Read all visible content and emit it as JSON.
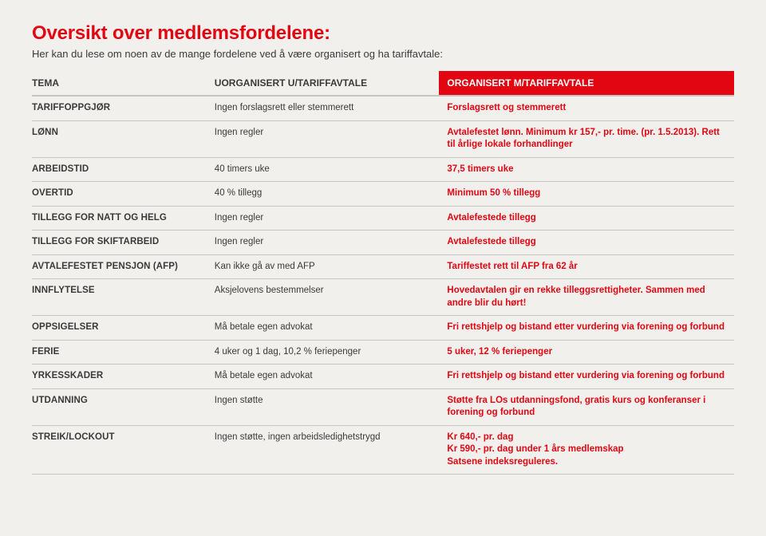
{
  "header": {
    "title": "Oversikt over medlemsfordelene:",
    "subtitle": "Her kan du lese om noen av de mange fordelene ved å være organisert og ha tariffavtale:"
  },
  "columns": [
    "TEMA",
    "UORGANISERT U/TARIFFAVTALE",
    "ORGANISERT M/TARIFFAVTALE"
  ],
  "rows": [
    {
      "topic": "TARIFFOPPGJØR",
      "uorg": "Ingen forslagsrett eller stemmerett",
      "org": "Forslagsrett og stemmerett"
    },
    {
      "topic": "LØNN",
      "uorg": "Ingen regler",
      "org": "Avtalefestet lønn. Minimum kr 157,- pr. time. (pr. 1.5.2013). Rett til årlige lokale forhandlinger"
    },
    {
      "topic": "ARBEIDSTID",
      "uorg": "40 timers uke",
      "org": "37,5 timers uke"
    },
    {
      "topic": "OVERTID",
      "uorg": "40 % tillegg",
      "org": "Minimum 50 % tillegg"
    },
    {
      "topic": "TILLEGG FOR NATT OG HELG",
      "uorg": "Ingen regler",
      "org": "Avtalefestede tillegg"
    },
    {
      "topic": "TILLEGG FOR SKIFTARBEID",
      "uorg": "Ingen regler",
      "org": "Avtalefestede tillegg"
    },
    {
      "topic": "AVTALEFESTET PENSJON (AFP)",
      "uorg": "Kan ikke gå av med AFP",
      "org": "Tariffestet rett til AFP fra 62 år"
    },
    {
      "topic": "INNFLYTELSE",
      "uorg": "Aksjelovens bestemmelser",
      "org": "Hovedavtalen gir en rekke tilleggsrettigheter. Sammen med andre blir du hørt!"
    },
    {
      "topic": "OPPSIGELSER",
      "uorg": "Må betale egen advokat",
      "org": "Fri rettshjelp og bistand etter vurdering via forening og forbund"
    },
    {
      "topic": "FERIE",
      "uorg": "4 uker og 1 dag, 10,2 % feriepenger",
      "org": "5 uker, 12 % feriepenger"
    },
    {
      "topic": "YRKESSKADER",
      "uorg": "Må betale egen advokat",
      "org": "Fri rettshjelp og bistand etter vurdering via forening og forbund"
    },
    {
      "topic": "UTDANNING",
      "uorg": "Ingen støtte",
      "org": "Støtte fra LOs utdanningsfond, gratis kurs og konferanser i forening og forbund"
    },
    {
      "topic": "STREIK/LOCKOUT",
      "uorg": "Ingen støtte, ingen arbeidsledighetstrygd",
      "org": "Kr 640,- pr. dag\nKr 590,- pr. dag under 1 års medlemskap\nSatsene indeksreguleres."
    }
  ],
  "style": {
    "background_color": "#f2f0ec",
    "accent_color": "#e20613",
    "text_color": "#3a3a3a",
    "row_border_color": "#c9c6c1",
    "header_border_color": "#c9c6c1",
    "title_fontsize": 24,
    "subtitle_fontsize": 13,
    "header_fontsize": 12,
    "cell_fontsize": 11.5,
    "col_widths_pct": [
      26,
      32,
      42
    ]
  }
}
